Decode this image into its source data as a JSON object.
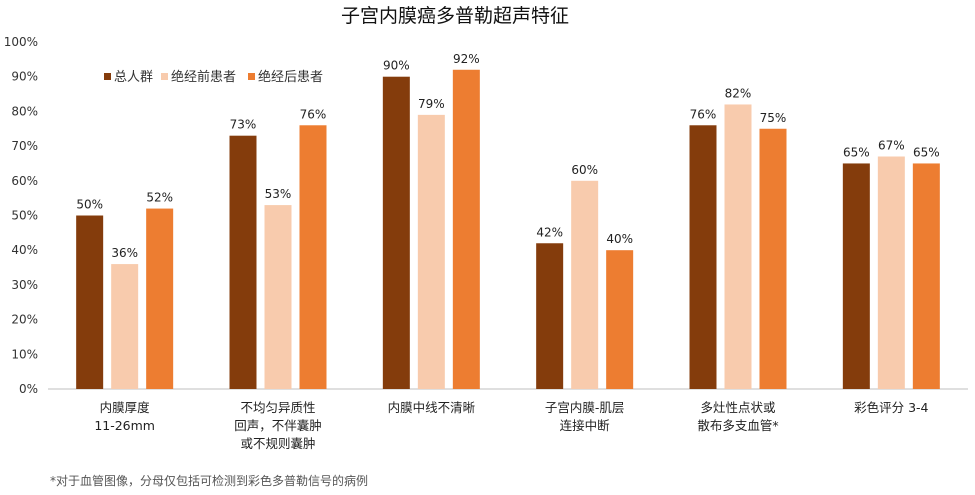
{
  "chart_data": {
    "type": "bar",
    "title": "子宫内膜癌多普勒超声特征",
    "xlabel": "",
    "ylabel": "",
    "ylim": [
      0,
      100
    ],
    "yticks": [
      "0%",
      "10%",
      "20%",
      "30%",
      "40%",
      "50%",
      "60%",
      "70%",
      "80%",
      "90%",
      "100%"
    ],
    "categories": [
      [
        "内膜厚度",
        "11-26mm"
      ],
      [
        "不均匀异质性",
        "回声，不伴囊肿",
        "或不规则囊肿"
      ],
      [
        "内膜中线不清晰"
      ],
      [
        "子宫内膜-肌层",
        "连接中断"
      ],
      [
        "多灶性点状或",
        "散布多支血管*"
      ],
      [
        "彩色评分 3-4"
      ]
    ],
    "series": [
      {
        "name": "总人群",
        "color": "#843c0c",
        "values": [
          50,
          73,
          90,
          42,
          76,
          65
        ],
        "labels": [
          "50%",
          "73%",
          "90%",
          "42%",
          "76%",
          "65%"
        ]
      },
      {
        "name": "绝经前患者",
        "color": "#f8cbad",
        "values": [
          36,
          53,
          79,
          60,
          82,
          67
        ],
        "labels": [
          "36%",
          "53%",
          "79%",
          "60%",
          "82%",
          "67%"
        ]
      },
      {
        "name": "绝经后患者",
        "color": "#ed7d31",
        "values": [
          52,
          76,
          92,
          40,
          75,
          65
        ],
        "labels": [
          "52%",
          "76%",
          "92%",
          "40%",
          "75%",
          "65%"
        ]
      }
    ],
    "legend": "top-left",
    "grid": false,
    "footnote": "*对于血管图像，分母仅包括可检测到彩色多普勒信号的病例"
  }
}
